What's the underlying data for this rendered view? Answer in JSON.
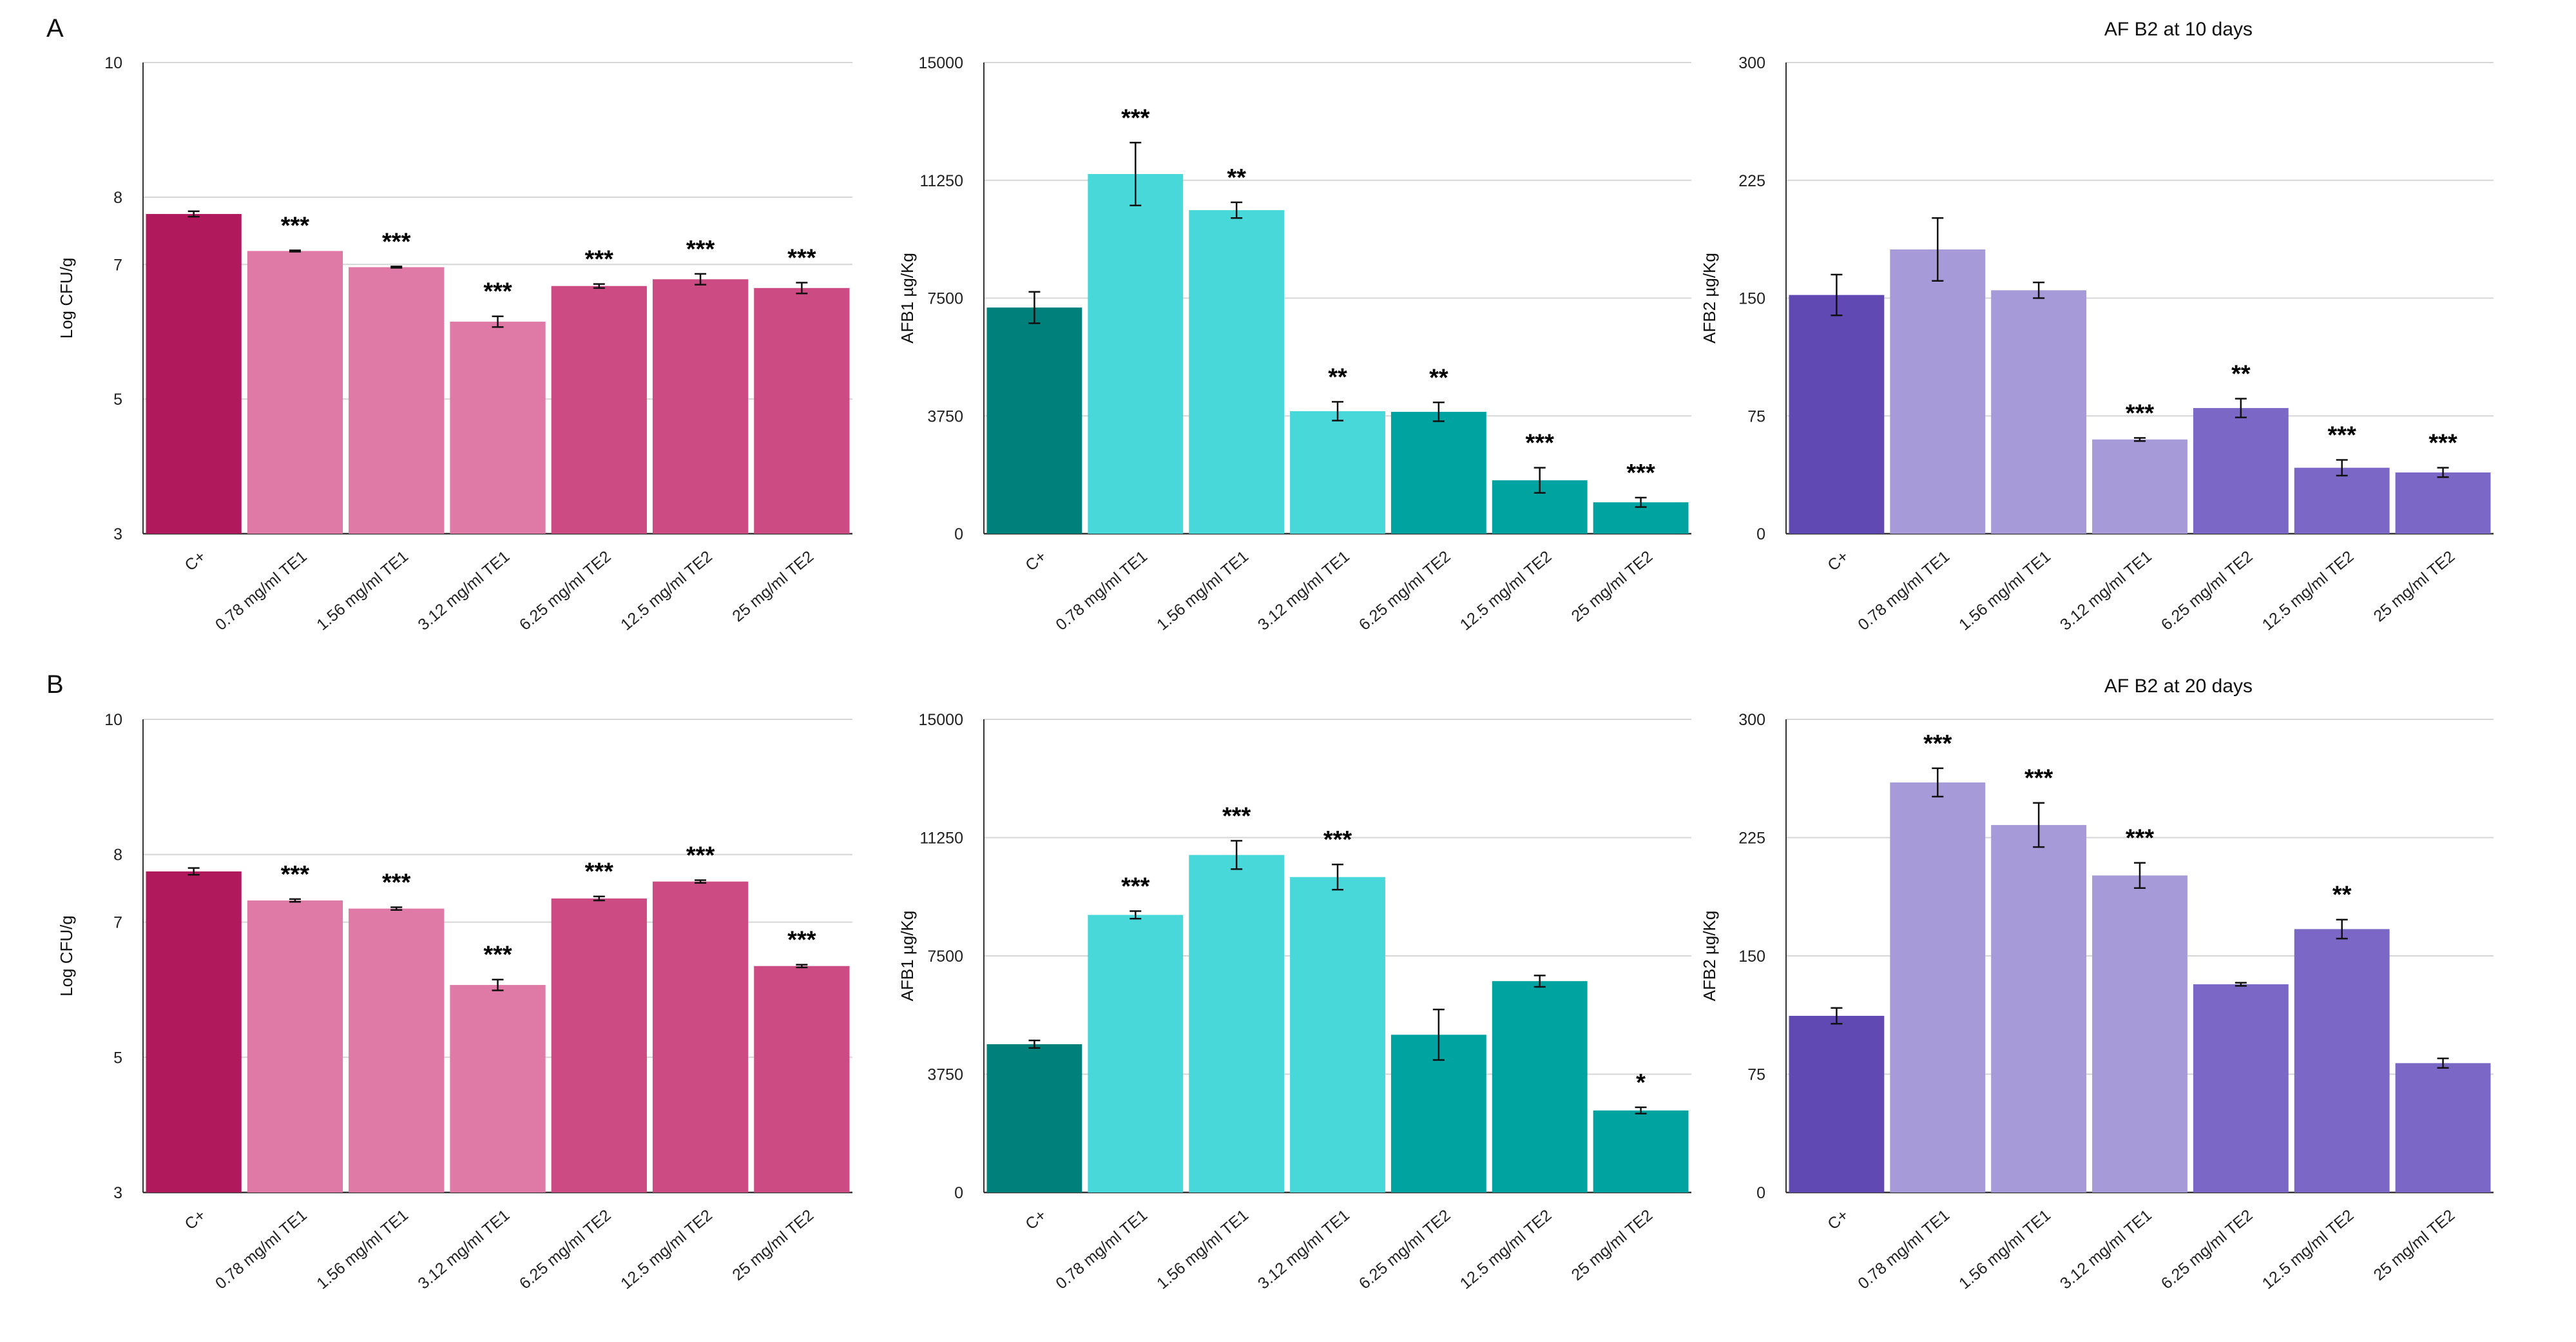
{
  "panels": {
    "A": "A",
    "B": "B"
  },
  "chart_data": [
    {
      "id": "A-cfu",
      "row": "A",
      "col": 0,
      "type": "bar",
      "title": "",
      "ylabel": "Log CFU/g",
      "ylim": [
        3,
        10
      ],
      "yticks": [
        3,
        5,
        7,
        8,
        10
      ],
      "categories": [
        "C+",
        "0.78 mg/ml TE1",
        "1.56 mg/ml TE1",
        "3.12 mg/ml TE1",
        "6.25 mg/ml TE2",
        "12.5 mg/ml TE2",
        "25 mg/ml TE2"
      ],
      "values": [
        7.75,
        7.2,
        6.96,
        6.15,
        6.68,
        6.78,
        6.65
      ],
      "errors": [
        0.04,
        0.01,
        0.01,
        0.08,
        0.03,
        0.08,
        0.08
      ],
      "significance": [
        "",
        "***",
        "***",
        "***",
        "***",
        "***",
        "***"
      ],
      "colors": [
        "#b01a5c",
        "#de7aa5",
        "#de7aa5",
        "#de7aa5",
        "#cc4b83",
        "#cc4b83",
        "#cc4b83"
      ]
    },
    {
      "id": "A-afb1",
      "row": "A",
      "col": 1,
      "type": "bar",
      "title": "",
      "ylabel": "AFB1 µg/Kg",
      "ylim": [
        0,
        15000
      ],
      "yticks": [
        0,
        3750,
        7500,
        11250,
        15000
      ],
      "categories": [
        "C+",
        "0.78 mg/ml TE1",
        "1.56 mg/ml TE1",
        "3.12 mg/ml TE1",
        "6.25 mg/ml TE2",
        "12.5 mg/ml TE2",
        "25 mg/ml TE2"
      ],
      "values": [
        7200,
        11450,
        10300,
        3900,
        3880,
        1700,
        1000
      ],
      "errors": [
        500,
        1000,
        250,
        300,
        300,
        400,
        150
      ],
      "significance": [
        "",
        "***",
        "**",
        "**",
        "**",
        "***",
        "***"
      ],
      "colors": [
        "#00807a",
        "#48d8da",
        "#48d8da",
        "#48d8da",
        "#00a3a0",
        "#00a3a0",
        "#00a3a0"
      ]
    },
    {
      "id": "A-afb2",
      "row": "A",
      "col": 2,
      "type": "bar",
      "title": "AF B2 at 10 days",
      "ylabel": "AFB2 µg/Kg",
      "ylim": [
        0,
        300
      ],
      "yticks": [
        0,
        75,
        150,
        225,
        300
      ],
      "categories": [
        "C+",
        "0.78 mg/ml TE1",
        "1.56 mg/ml TE1",
        "3.12 mg/ml TE1",
        "6.25 mg/ml TE2",
        "12.5 mg/ml TE2",
        "25 mg/ml TE2"
      ],
      "values": [
        152,
        181,
        155,
        60,
        80,
        42,
        39
      ],
      "errors": [
        13,
        20,
        5,
        1,
        6,
        5,
        3
      ],
      "significance": [
        "",
        "",
        "",
        "***",
        "**",
        "***",
        "***"
      ],
      "colors": [
        "#6049b3",
        "#a69ad8",
        "#a69ad8",
        "#a69ad8",
        "#7b68c6",
        "#7b68c6",
        "#7b68c6"
      ]
    },
    {
      "id": "B-cfu",
      "row": "B",
      "col": 0,
      "type": "bar",
      "title": "",
      "ylabel": "Log CFU/g",
      "ylim": [
        3,
        10
      ],
      "yticks": [
        3,
        5,
        7,
        8,
        10
      ],
      "categories": [
        "C+",
        "0.78 mg/ml TE1",
        "1.56 mg/ml TE1",
        "3.12 mg/ml TE1",
        "6.25 mg/ml TE2",
        "12.5 mg/ml TE2",
        "25 mg/ml TE2"
      ],
      "values": [
        7.75,
        7.32,
        7.2,
        6.07,
        7.35,
        7.6,
        6.35
      ],
      "errors": [
        0.05,
        0.02,
        0.02,
        0.08,
        0.03,
        0.02,
        0.02
      ],
      "significance": [
        "",
        "***",
        "***",
        "***",
        "***",
        "***",
        "***"
      ],
      "colors": [
        "#b01a5c",
        "#de7aa5",
        "#de7aa5",
        "#de7aa5",
        "#cc4b83",
        "#cc4b83",
        "#cc4b83"
      ]
    },
    {
      "id": "B-afb1",
      "row": "B",
      "col": 1,
      "type": "bar",
      "title": "",
      "ylabel": "AFB1 µg/Kg",
      "ylim": [
        0,
        15000
      ],
      "yticks": [
        0,
        3750,
        7500,
        11250,
        15000
      ],
      "categories": [
        "C+",
        "0.78 mg/ml TE1",
        "1.56 mg/ml TE1",
        "3.12 mg/ml TE1",
        "6.25 mg/ml TE2",
        "12.5 mg/ml TE2",
        "25 mg/ml TE2"
      ],
      "values": [
        4700,
        8800,
        10700,
        10000,
        5000,
        6700,
        2600
      ],
      "errors": [
        120,
        120,
        450,
        400,
        800,
        180,
        100
      ],
      "significance": [
        "",
        "***",
        "***",
        "***",
        "",
        "",
        "*"
      ],
      "colors": [
        "#00807a",
        "#48d8da",
        "#48d8da",
        "#48d8da",
        "#00a3a0",
        "#00a3a0",
        "#00a3a0"
      ]
    },
    {
      "id": "B-afb2",
      "row": "B",
      "col": 2,
      "type": "bar",
      "title": "AF B2 at 20 days",
      "ylabel": "AFB2 µg/Kg",
      "ylim": [
        0,
        300
      ],
      "yticks": [
        0,
        75,
        150,
        225,
        300
      ],
      "categories": [
        "C+",
        "0.78 mg/ml TE1",
        "1.56 mg/ml TE1",
        "3.12 mg/ml TE1",
        "6.25 mg/ml TE2",
        "12.5 mg/ml TE2",
        "25 mg/ml TE2"
      ],
      "values": [
        112,
        260,
        233,
        201,
        132,
        167,
        82
      ],
      "errors": [
        5,
        9,
        14,
        8,
        1,
        6,
        3
      ],
      "significance": [
        "",
        "***",
        "***",
        "***",
        "",
        "**",
        ""
      ],
      "colors": [
        "#6049b3",
        "#a69ad8",
        "#a69ad8",
        "#a69ad8",
        "#7b68c6",
        "#7b68c6",
        "#7b68c6"
      ]
    }
  ]
}
